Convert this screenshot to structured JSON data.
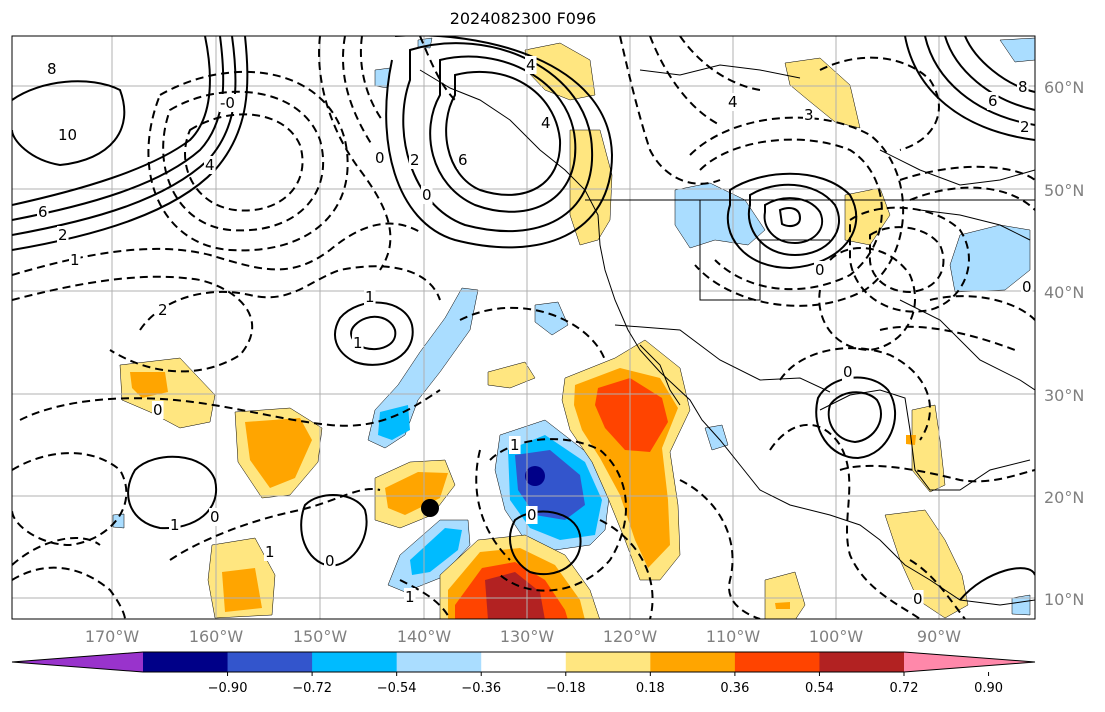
{
  "title": "2024082300 F096",
  "lon_labels": [
    "170°W",
    "160°W",
    "150°W",
    "140°W",
    "130°W",
    "120°W",
    "110°W",
    "100°W",
    "90°W"
  ],
  "lat_labels": [
    "60°N",
    "50°N",
    "40°N",
    "30°N",
    "20°N",
    "10°N"
  ],
  "colorbar": {
    "colors": [
      "#9933cc",
      "#000088",
      "#3355cc",
      "#00bbff",
      "#aaddff",
      "#ffffff",
      "#ffe680",
      "#ffa500",
      "#ff4400",
      "#b22222",
      "#ff88aa"
    ],
    "tick_labels": [
      "−0.90",
      "−0.72",
      "−0.54",
      "−0.36",
      "−0.18",
      "0.18",
      "0.36",
      "0.54",
      "0.72",
      "0.90"
    ]
  },
  "contour_labels": [
    "8",
    "10",
    "6",
    "2",
    "1",
    "2",
    "4",
    "0",
    "0",
    "6",
    "4",
    "2",
    "-0",
    "4",
    "1",
    "0",
    "3",
    "0",
    "1",
    "1",
    "0",
    "1",
    "0",
    "1",
    "0",
    "1",
    "0",
    "0",
    "4",
    "6",
    "8",
    "2",
    "0"
  ]
}
